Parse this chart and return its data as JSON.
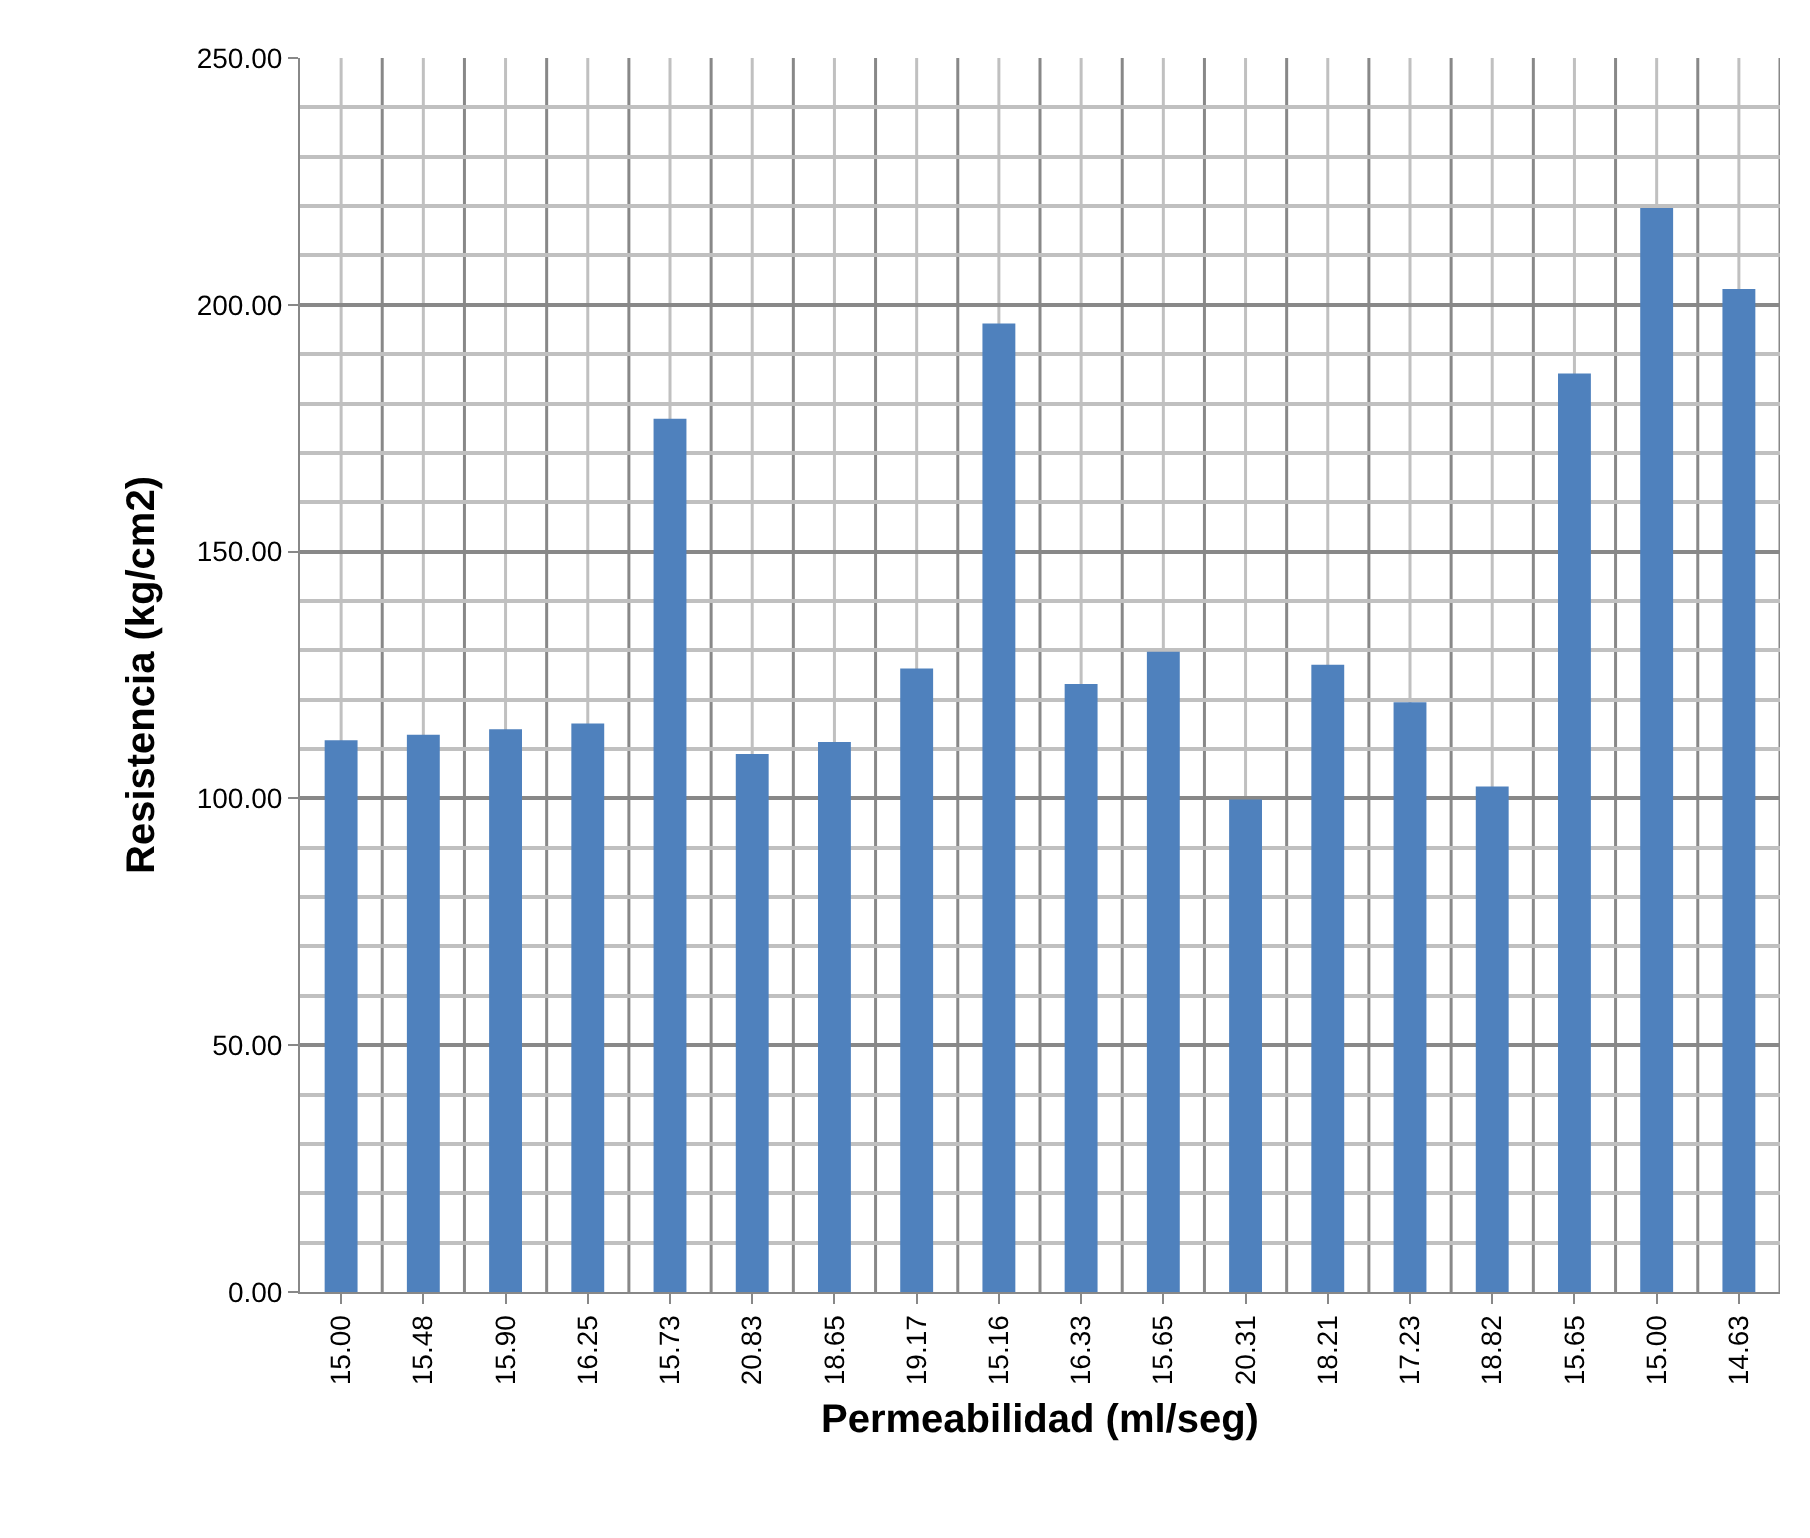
{
  "chart_data": {
    "type": "bar",
    "xlabel": "Permeabilidad (ml/seg)",
    "ylabel": "Resistencia (kg/cm2)",
    "categories": [
      "15.00",
      "15.48",
      "15.90",
      "16.25",
      "15.73",
      "20.83",
      "18.65",
      "19.17",
      "15.16",
      "16.33",
      "15.65",
      "20.31",
      "18.21",
      "17.23",
      "18.82",
      "15.65",
      "15.00",
      "14.63"
    ],
    "values": [
      111.8,
      112.9,
      114.0,
      115.2,
      176.9,
      109.0,
      111.4,
      126.3,
      196.2,
      123.2,
      129.7,
      99.8,
      127.1,
      119.5,
      102.4,
      186.1,
      219.6,
      203.2
    ],
    "color": "#4f81bd",
    "ylim": [
      0,
      250
    ],
    "yticks": [
      {
        "value": 0,
        "label": "0.00"
      },
      {
        "value": 50,
        "label": "50.00"
      },
      {
        "value": 100,
        "label": "100.00"
      },
      {
        "value": 150,
        "label": "150.00"
      },
      {
        "value": 200,
        "label": "200.00"
      },
      {
        "value": 250,
        "label": "250.00"
      }
    ],
    "grid": true
  }
}
